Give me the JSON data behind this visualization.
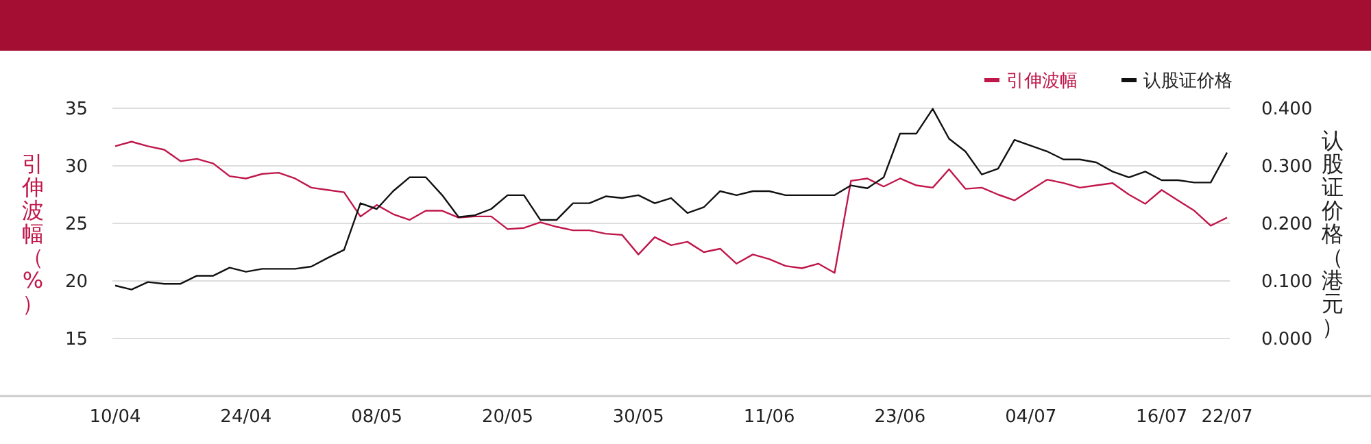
{
  "chart_data": {
    "type": "line",
    "categories": [
      "10/04",
      null,
      null,
      null,
      null,
      null,
      null,
      null,
      "24/04",
      null,
      null,
      null,
      null,
      null,
      null,
      null,
      "08/05",
      null,
      null,
      null,
      null,
      null,
      null,
      null,
      "20/05",
      null,
      null,
      null,
      null,
      null,
      null,
      null,
      "30/05",
      null,
      null,
      null,
      null,
      null,
      null,
      null,
      "11/06",
      null,
      null,
      null,
      null,
      null,
      null,
      null,
      "23/06",
      null,
      null,
      null,
      null,
      null,
      null,
      null,
      "04/07",
      null,
      null,
      null,
      null,
      null,
      null,
      null,
      "16/07",
      null,
      null,
      null,
      "22/07"
    ],
    "series": [
      {
        "name": "引伸波幅",
        "color": "#c0174a",
        "values": [
          31.7,
          32.1,
          31.7,
          31.4,
          30.4,
          30.6,
          30.2,
          29.1,
          28.9,
          29.3,
          29.4,
          28.9,
          28.1,
          27.9,
          27.7,
          25.6,
          26.6,
          25.8,
          25.3,
          26.1,
          26.1,
          25.5,
          25.6,
          25.6,
          24.5,
          24.6,
          25.1,
          24.7,
          24.4,
          24.4,
          24.1,
          24.0,
          22.3,
          23.8,
          23.1,
          23.4,
          22.5,
          22.8,
          21.5,
          22.3,
          21.9,
          21.3,
          21.1,
          21.5,
          20.7,
          28.7,
          28.9,
          28.2,
          28.9,
          28.3,
          28.1,
          29.7,
          28.0,
          28.1,
          27.5,
          27.0,
          27.9,
          28.8,
          28.5,
          28.1,
          28.3,
          28.5,
          27.5,
          26.7,
          27.9,
          27.0,
          26.1,
          24.8,
          25.5
        ]
      },
      {
        "name": "认股证价格",
        "color": "#111111",
        "axis": "y2",
        "values": [
          0.092,
          0.085,
          0.098,
          0.095,
          0.095,
          0.109,
          0.109,
          0.123,
          0.116,
          0.121,
          0.121,
          0.121,
          0.125,
          0.14,
          0.154,
          0.235,
          0.225,
          0.256,
          0.28,
          0.28,
          0.249,
          0.211,
          0.214,
          0.225,
          0.249,
          0.249,
          0.206,
          0.206,
          0.235,
          0.235,
          0.247,
          0.244,
          0.249,
          0.235,
          0.244,
          0.218,
          0.228,
          0.256,
          0.249,
          0.256,
          0.256,
          0.249,
          0.249,
          0.249,
          0.249,
          0.266,
          0.261,
          0.28,
          0.356,
          0.356,
          0.399,
          0.347,
          0.325,
          0.285,
          0.295,
          0.345,
          0.335,
          0.325,
          0.311,
          0.311,
          0.306,
          0.29,
          0.28,
          0.29,
          0.275,
          0.275,
          0.271,
          0.271,
          0.323
        ]
      }
    ],
    "ylabel": "引伸波幅（%）",
    "y2label": "认股证价格（港元）",
    "ylim": [
      10,
      35
    ],
    "yticks": [
      15,
      20,
      25,
      30,
      35
    ],
    "y2lim": [
      -0.1,
      0.4
    ],
    "y2ticks": [
      {
        "value": 0,
        "label": "0.000"
      },
      {
        "value": 0.1,
        "label": "0.100"
      },
      {
        "value": 0.2,
        "label": "0.200"
      },
      {
        "value": 0.3,
        "label": "0.300"
      },
      {
        "value": 0.4,
        "label": "0.400"
      }
    ],
    "grid": "y",
    "legend": "top right",
    "marker": "none",
    "line_style": "solid"
  }
}
